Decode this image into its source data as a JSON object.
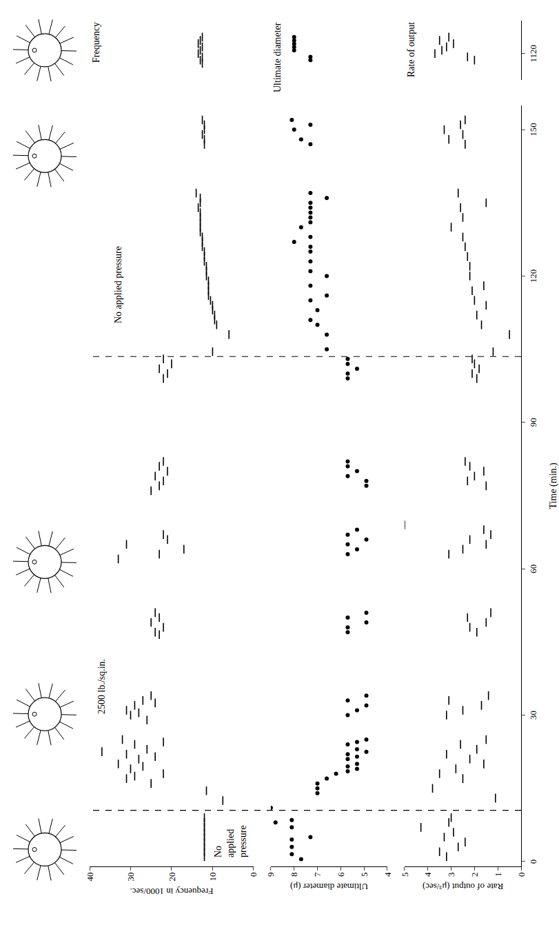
{
  "chart_data": {
    "type": "scatter",
    "x_label": "Time (min.)",
    "xlim": [
      -1,
      155
    ],
    "xticks": [
      0,
      30,
      60,
      90,
      120,
      150
    ],
    "x2lim": [
      1112,
      1130
    ],
    "x2ticks": [
      1120
    ],
    "grid": false,
    "events": [
      10.5,
      103.5
    ],
    "annotations": [
      {
        "text": "No applied pressure",
        "x": 0.5,
        "y": 1,
        "panel": 0
      },
      {
        "text": "2500 lb./sq.in.",
        "x": 30,
        "y": 37,
        "panel": 0
      },
      {
        "text": "No applied pressure",
        "x": 110,
        "y": 33,
        "panel": 0
      }
    ],
    "panels": [
      {
        "label": "Frequency",
        "y_label": "Frequency in 1000/sec.",
        "ylim": [
          0,
          40
        ],
        "yticks": [
          0,
          10,
          20,
          30,
          40
        ],
        "marker": "dash",
        "color": "#000000",
        "x": [
          1,
          2,
          3,
          4,
          5,
          6,
          7,
          8,
          9,
          12.5,
          14.5,
          16,
          17,
          17.5,
          18,
          19,
          19.5,
          20,
          21,
          21.5,
          22,
          22.5,
          23,
          24,
          24.5,
          25,
          29,
          30,
          30.5,
          31,
          32,
          32.5,
          33,
          34,
          46.5,
          47,
          48,
          49,
          50,
          51,
          62,
          63,
          64,
          65,
          66,
          67,
          76,
          77,
          78,
          79,
          80,
          81,
          82,
          99,
          100,
          101,
          102,
          103,
          104.5,
          108,
          110,
          111,
          112,
          113,
          114,
          115,
          116,
          117,
          118,
          119,
          120,
          121,
          122,
          123,
          124,
          125,
          126,
          127,
          128,
          129,
          130,
          131,
          132,
          133,
          134,
          135,
          136,
          137,
          147,
          148,
          149,
          150,
          151,
          152,
          1117,
          1118,
          1119,
          1120,
          1121,
          1122,
          1123,
          1124,
          1125
        ],
        "values": [
          12,
          12,
          12,
          12,
          12,
          12,
          12,
          12,
          12,
          7.5,
          11.5,
          25,
          31,
          29,
          22,
          30,
          27,
          33,
          28,
          24,
          31,
          37,
          26,
          29,
          22,
          32,
          26,
          30,
          28,
          31,
          29,
          24,
          27,
          25,
          23,
          24,
          22,
          25,
          23,
          24,
          33,
          23,
          17,
          31,
          21,
          22,
          25,
          23,
          22,
          24,
          21,
          23,
          22,
          22,
          21,
          23,
          20,
          22,
          10,
          6,
          9,
          9.5,
          9.5,
          10,
          10,
          10.5,
          11,
          11,
          11,
          11,
          11.5,
          11.5,
          11.5,
          12,
          12,
          12,
          12.5,
          12.5,
          12.5,
          13,
          13,
          13,
          13,
          13,
          13.5,
          13,
          13,
          14,
          12,
          12,
          12.5,
          12,
          12,
          12.5,
          12.5,
          13,
          12.5,
          13.5,
          13,
          12.5,
          13.5,
          13,
          12.5
        ]
      },
      {
        "label": "Ultimate diameter",
        "y_label": "Ultimate diameter (μ)",
        "ylim": [
          4,
          9
        ],
        "yticks": [
          4,
          5,
          6,
          7,
          8,
          9
        ],
        "marker": "dot",
        "color": "#000000",
        "x": [
          0.5,
          1.5,
          3,
          4.5,
          5,
          7,
          8,
          8.5,
          11,
          14,
          15,
          16,
          17,
          18,
          18.5,
          19,
          19.5,
          20,
          21,
          21.5,
          22,
          22.5,
          23,
          24,
          24.5,
          25,
          30,
          31,
          32,
          33,
          34,
          47,
          48,
          49,
          50,
          51,
          63,
          64,
          65,
          66,
          67,
          68,
          77,
          78,
          79,
          80,
          81,
          82,
          99,
          100,
          101,
          102,
          103,
          105,
          108,
          110,
          111,
          113,
          115,
          116,
          118,
          120,
          121,
          123,
          125,
          126,
          127,
          128,
          130,
          131,
          132,
          133,
          134,
          135,
          136,
          137,
          147,
          148,
          150,
          151,
          152,
          1118,
          1119,
          1121,
          1122,
          1123,
          1124,
          1125
        ],
        "values": [
          7.7,
          8.1,
          8.1,
          8.1,
          7.3,
          8.1,
          8.8,
          8.1,
          9,
          7,
          7,
          7,
          6.6,
          6.2,
          5.7,
          5.3,
          5.7,
          5.3,
          5.7,
          5.3,
          5.7,
          4.9,
          5.3,
          5.7,
          5.3,
          4.9,
          5.7,
          5.3,
          4.9,
          5.7,
          4.9,
          5.7,
          5.7,
          4.9,
          5.7,
          4.9,
          5.7,
          5.3,
          5.7,
          4.9,
          5.7,
          5.3,
          4.9,
          4.9,
          5.7,
          5.3,
          5.7,
          5.7,
          5.7,
          5.7,
          5.3,
          5.7,
          5.7,
          6.6,
          6.6,
          7,
          7.3,
          7,
          7.3,
          6.6,
          7.3,
          6.6,
          7.3,
          7.3,
          7.3,
          7.3,
          8,
          7.3,
          7.7,
          7.3,
          7.3,
          7.3,
          7.3,
          7.3,
          6.6,
          7.3,
          7.3,
          7.7,
          8,
          7.3,
          8.1,
          7.3,
          7.3,
          8,
          8,
          8,
          8,
          8
        ]
      },
      {
        "label": "Rate of output",
        "y_label": "Rate of output (μ³/sec)",
        "ylim": [
          0,
          5
        ],
        "yticks": [
          0,
          1,
          2,
          3,
          4,
          5
        ],
        "marker": "dash",
        "color": "#000000",
        "x": [
          1,
          2,
          3,
          4,
          5,
          6,
          7,
          8,
          9,
          13,
          15,
          17,
          18,
          19,
          20,
          21,
          22,
          23,
          24,
          25,
          30,
          31,
          32,
          33,
          34,
          47,
          48,
          49,
          50,
          51,
          63,
          64,
          65,
          66,
          67,
          68,
          69,
          77,
          78,
          79,
          80,
          81,
          82,
          99,
          100,
          101,
          102,
          103,
          104.5,
          108,
          110,
          112,
          114,
          115,
          117,
          118,
          120,
          122,
          124,
          126,
          128,
          130,
          132,
          134,
          135,
          137,
          147,
          148,
          149,
          150,
          151,
          152,
          1118,
          1119,
          1120,
          1121,
          1122,
          1123,
          1124,
          1125
        ],
        "values": [
          3.2,
          3.5,
          2.7,
          2.4,
          3.3,
          2.9,
          4.3,
          3.1,
          3,
          1.1,
          3.8,
          2.5,
          3.5,
          2.8,
          1.6,
          2.2,
          3.2,
          1.9,
          2.6,
          1.5,
          3.2,
          2.5,
          1.7,
          3.1,
          1.4,
          1.9,
          2.2,
          1.5,
          2.3,
          1.3,
          3.1,
          2.5,
          1.5,
          2.2,
          1.3,
          1.6,
          5,
          1.5,
          2.3,
          2,
          1.6,
          2.2,
          2.4,
          1.9,
          2.1,
          1.8,
          2,
          2.1,
          1.2,
          0.5,
          1.7,
          1.9,
          1.5,
          2,
          2.1,
          1.6,
          2.2,
          2.2,
          2.3,
          2.4,
          2.5,
          3,
          2.5,
          2.6,
          1.5,
          2.7,
          2.4,
          3.1,
          2.5,
          3.3,
          2.6,
          2.4,
          2,
          2.3,
          3.7,
          3.4,
          3.2,
          2.9,
          3.5,
          3.1
        ]
      }
    ]
  }
}
